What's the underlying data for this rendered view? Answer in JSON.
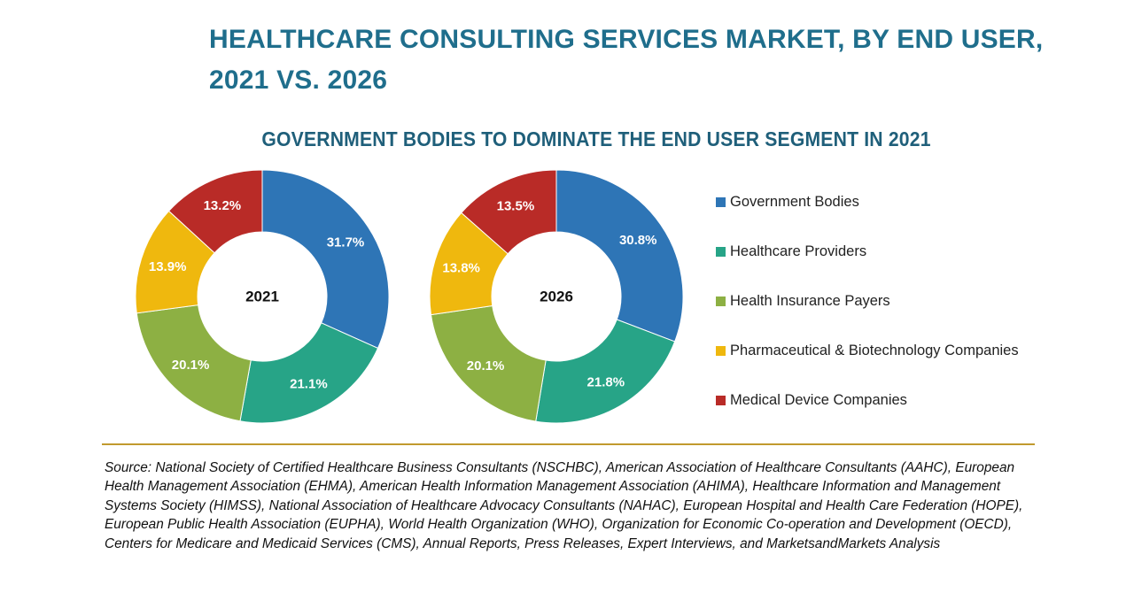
{
  "header": {
    "title_line1": "HEALTHCARE CONSULTING SERVICES MARKET, BY END USER,",
    "title_line2": "2021 VS. 2026",
    "subtitle": "GOVERNMENT BODIES TO DOMINATE THE END USER SEGMENT IN 2021"
  },
  "colors": {
    "Government Bodies": "#2e75b6",
    "Healthcare Providers": "#27a487",
    "Health Insurance Payers": "#8db043",
    "Pharmaceutical & Biotechnology Companies": "#efb80e",
    "Medical Device Companies": "#b92b27"
  },
  "legend": [
    "Government Bodies",
    "Healthcare Providers",
    "Health Insurance Payers",
    "Pharmaceutical & Biotechnology Companies",
    "Medical Device Companies"
  ],
  "chart_data": [
    {
      "type": "pie",
      "variant": "donut",
      "title": "2021",
      "categories": [
        "Government Bodies",
        "Healthcare Providers",
        "Health Insurance Payers",
        "Pharmaceutical & Biotechnology Companies",
        "Medical Device Companies"
      ],
      "values": [
        31.7,
        21.1,
        20.1,
        13.9,
        13.2
      ],
      "labels": [
        "31.7%",
        "21.1%",
        "20.1%",
        "13.9%",
        "13.2%"
      ],
      "unit": "%"
    },
    {
      "type": "pie",
      "variant": "donut",
      "title": "2026",
      "categories": [
        "Government Bodies",
        "Healthcare Providers",
        "Health Insurance Payers",
        "Pharmaceutical & Biotechnology Companies",
        "Medical Device Companies"
      ],
      "values": [
        30.8,
        21.8,
        20.1,
        13.8,
        13.5
      ],
      "labels": [
        "30.8%",
        "21.8%",
        "20.1%",
        "13.8%",
        "13.5%"
      ],
      "unit": "%"
    }
  ],
  "source": "Source: National Society of Certified Healthcare Business Consultants (NSCHBC), American Association of Healthcare Consultants (AAHC), European Health Management Association (EHMA), American Health Information Management Association (AHIMA), Healthcare Information and Management Systems Society (HIMSS), National Association of Healthcare Advocacy Consultants (NAHAC), European Hospital and Health Care Federation (HOPE), European Public Health Association (EUPHA), World Health Organization (WHO), Organization for Economic Co-operation and Development (OECD), Centers for Medicare and Medicaid Services (CMS), Annual Reports, Press Releases, Expert Interviews, and MarketsandMarkets Analysis"
}
